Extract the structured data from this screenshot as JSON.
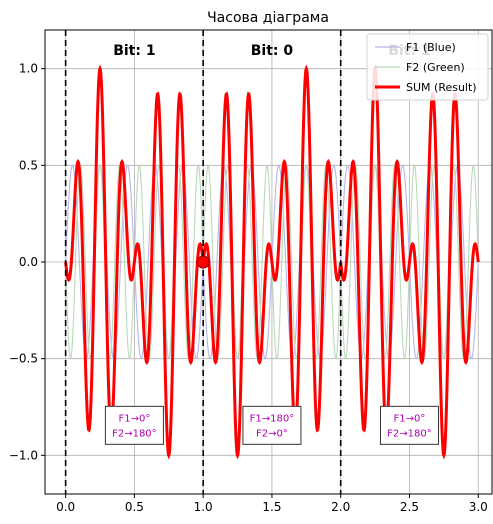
{
  "chart_data": {
    "type": "line",
    "title": "Часова діаграма",
    "xlabel": "",
    "ylabel": "",
    "xlim": [
      -0.15,
      3.1
    ],
    "ylim": [
      -1.2,
      1.2
    ],
    "x_ticks": [
      0.0,
      0.5,
      1.0,
      1.5,
      2.0,
      2.5,
      3.0
    ],
    "x_tick_labels": [
      "0.0",
      "0.5",
      "1.0",
      "1.5",
      "2.0",
      "2.5",
      "3.0"
    ],
    "y_ticks": [
      -1.0,
      -0.5,
      0.0,
      0.5,
      1.0
    ],
    "y_tick_labels": [
      "−1.0",
      "−0.5",
      "0.0",
      "0.5",
      "1.0"
    ],
    "grid": true,
    "legend_position": "top-right",
    "series": [
      {
        "name": "F1 (Blue)",
        "color": "#b7b7e8",
        "frequency": 5,
        "amplitude": 0.5,
        "phase_deg_by_bit": [
          0,
          180,
          0
        ]
      },
      {
        "name": "F2 (Green)",
        "color": "#b9d9b9",
        "frequency": 7,
        "amplitude": 0.5,
        "phase_deg_by_bit": [
          180,
          0,
          180
        ]
      },
      {
        "name": "SUM (Result)",
        "color": "#ff0000",
        "formula": "F1 + F2"
      }
    ],
    "bit_boundaries": [
      0,
      1,
      2,
      3
    ],
    "bit_labels": [
      "Bit: 1",
      "Bit: 0",
      "Bit: 1"
    ],
    "phase_annotations": [
      {
        "x": 0.5,
        "y": -0.85,
        "lines": [
          "F1→0°",
          "F2→180°"
        ]
      },
      {
        "x": 1.5,
        "y": -0.85,
        "lines": [
          "F1→180°",
          "F2→0°"
        ]
      },
      {
        "x": 2.5,
        "y": -0.85,
        "lines": [
          "F1→0°",
          "F2→180°"
        ]
      }
    ],
    "marker_point": {
      "x": 1.0,
      "y": 0.0
    },
    "annotation_color": "#b000b0",
    "bit_label_color": "#000000"
  }
}
